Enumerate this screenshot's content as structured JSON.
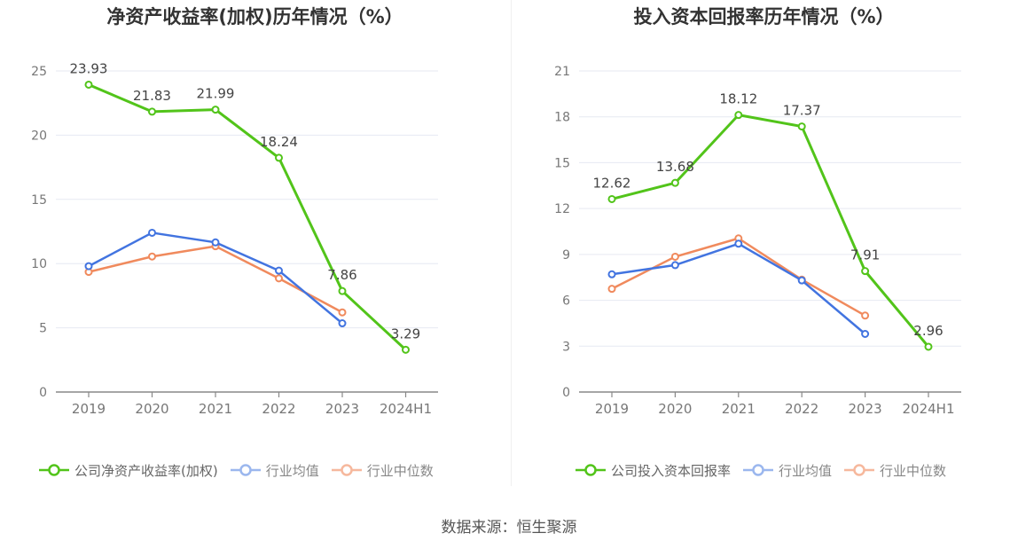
{
  "chart_data": [
    {
      "type": "line",
      "title": "净资产收益率(加权)历年情况（%）",
      "categories": [
        "2019",
        "2020",
        "2021",
        "2022",
        "2023",
        "2024H1"
      ],
      "ylim": [
        0,
        25
      ],
      "yticks": [
        0,
        5,
        10,
        15,
        20,
        25
      ],
      "grid": true,
      "legend_position": "bottom",
      "series": [
        {
          "name": "公司净资产收益率(加权)",
          "color": "#52c41a",
          "values": [
            23.93,
            21.83,
            21.99,
            18.24,
            7.86,
            3.29
          ],
          "labels": [
            "23.93",
            "21.83",
            "21.99",
            "18.24",
            "7.86",
            "3.29"
          ]
        },
        {
          "name": "行业均值",
          "color": "#4274e0",
          "values": [
            9.8,
            12.4,
            11.65,
            9.45,
            5.35,
            null
          ]
        },
        {
          "name": "行业中位数",
          "color": "#f08a5d",
          "values": [
            9.35,
            10.55,
            11.35,
            8.85,
            6.2,
            null
          ]
        }
      ]
    },
    {
      "type": "line",
      "title": "投入资本回报率历年情况（%）",
      "categories": [
        "2019",
        "2020",
        "2021",
        "2022",
        "2023",
        "2024H1"
      ],
      "ylim": [
        0,
        21
      ],
      "yticks": [
        0,
        3,
        6,
        9,
        12,
        15,
        18,
        21
      ],
      "grid": true,
      "legend_position": "bottom",
      "series": [
        {
          "name": "公司投入资本回报率",
          "color": "#52c41a",
          "values": [
            12.62,
            13.68,
            18.12,
            17.37,
            7.91,
            2.96
          ],
          "labels": [
            "12.62",
            "13.68",
            "18.12",
            "17.37",
            "7.91",
            "2.96"
          ]
        },
        {
          "name": "行业均值",
          "color": "#4274e0",
          "values": [
            7.7,
            8.3,
            9.7,
            7.3,
            3.8,
            null
          ]
        },
        {
          "name": "行业中位数",
          "color": "#f08a5d",
          "values": [
            6.75,
            8.85,
            10.05,
            7.35,
            5.0,
            null
          ]
        }
      ]
    }
  ],
  "footer": {
    "source": "数据来源：恒生聚源"
  }
}
